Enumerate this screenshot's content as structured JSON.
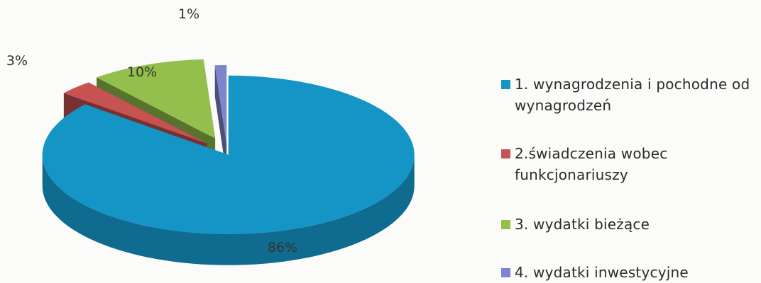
{
  "chart_data": {
    "type": "pie",
    "style": "3d-exploded",
    "categories": [
      "1. wynagrodzenia i pochodne od wynagrodzeń",
      "2.świadczenia wobec funkcjonariuszy",
      "3. wydatki bieżące",
      "4. wydatki inwestycyjne"
    ],
    "values": [
      86,
      3,
      10,
      1
    ],
    "data_labels": [
      "86%",
      "3%",
      "10%",
      "1%"
    ],
    "colors": [
      "#1594c6",
      "#c65252",
      "#93bf4d",
      "#7b86cc"
    ],
    "legend_position": "right"
  },
  "legend": {
    "items": [
      {
        "line1": "1. wynagrodzenia i pochodne od",
        "line2": "wynagrodzeń",
        "color": "#1594c6"
      },
      {
        "line1": "2.świadczenia wobec",
        "line2": "funkcjonariuszy",
        "color": "#c65252"
      },
      {
        "line1": "3. wydatki bieżące",
        "line2": "",
        "color": "#93bf4d"
      },
      {
        "line1": "4. wydatki inwestycyjne",
        "line2": "",
        "color": "#7b86cc"
      }
    ]
  }
}
